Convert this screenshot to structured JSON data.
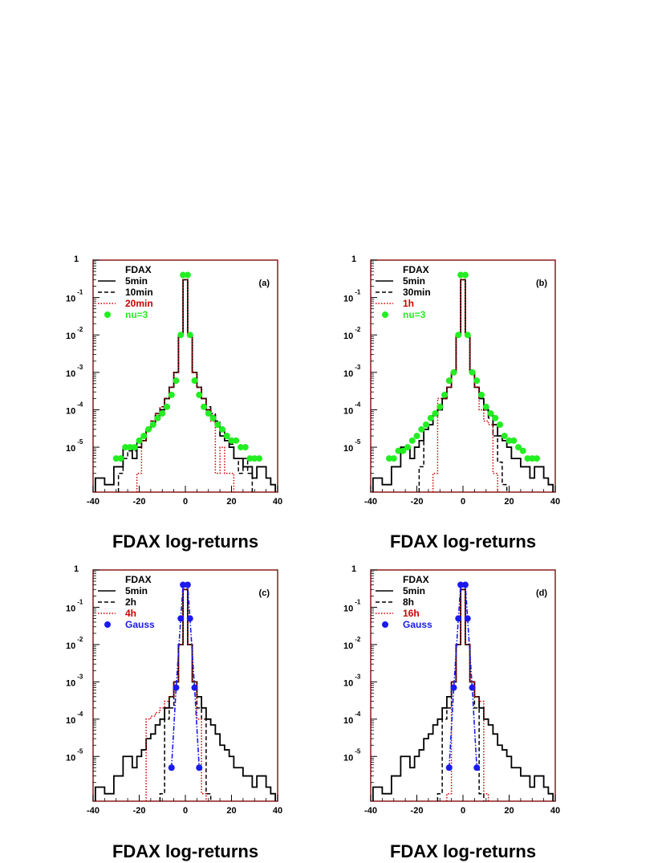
{
  "colors": {
    "black": "#000000",
    "red": "#cc0000",
    "green": "#22ee22",
    "blue": "#1a1aee",
    "frame": "#8b1a1a"
  },
  "chart_data": [
    {
      "panel": "(a)",
      "type": "histogram",
      "xlabel": "FDAX log-returns",
      "xlim": [
        -40,
        40
      ],
      "xticks": [
        "-40",
        "-20",
        "0",
        "20",
        "40"
      ],
      "yscale": "log",
      "yticks": [
        {
          "base": "1",
          "exp": ""
        },
        {
          "base": "10",
          "exp": "-1"
        },
        {
          "base": "10",
          "exp": "-2"
        },
        {
          "base": "10",
          "exp": "-3"
        },
        {
          "base": "10",
          "exp": "-4"
        },
        {
          "base": "10",
          "exp": "-5"
        }
      ],
      "legend_title": "FDAX",
      "series": [
        {
          "name": "5min",
          "style": "solid",
          "color": "#000000",
          "x": [
            -38,
            -36,
            -34,
            -32,
            -30,
            -28,
            -26,
            -24,
            -22,
            -20,
            -18,
            -16,
            -14,
            -12,
            -10,
            -8,
            -6,
            -4,
            -2,
            0,
            2,
            4,
            6,
            8,
            10,
            12,
            14,
            16,
            18,
            20,
            22,
            24,
            26,
            28,
            30,
            32,
            34,
            36,
            38
          ],
          "y": [
            1.5e-06,
            1.5e-06,
            1e-06,
            1e-06,
            3e-06,
            3e-06,
            1e-05,
            1e-05,
            5e-06,
            1e-05,
            1.5e-05,
            3e-05,
            4e-05,
            7e-05,
            0.0001,
            0.0002,
            0.0004,
            0.001,
            0.01,
            0.3,
            0.01,
            0.001,
            0.0004,
            0.0002,
            0.0001,
            7e-05,
            4e-05,
            2e-05,
            1.5e-05,
            1e-05,
            5e-06,
            5e-06,
            3e-06,
            3e-06,
            1.5e-06,
            3e-06,
            3e-06,
            1.5e-06,
            1e-06
          ]
        },
        {
          "name": "10min",
          "style": "dashed",
          "color": "#000000",
          "x": [
            -28,
            -26,
            -24,
            -22,
            -20,
            -18,
            -16,
            -14,
            -12,
            -10,
            -8,
            -6,
            -4,
            -2,
            0,
            2,
            4,
            6,
            8,
            10,
            12,
            14,
            16,
            18,
            20,
            22,
            24,
            26,
            28
          ],
          "y": [
            2e-06,
            5e-06,
            8e-06,
            8e-06,
            1.5e-05,
            2e-05,
            3e-05,
            5e-05,
            8e-05,
            0.00012,
            0.0002,
            0.0004,
            0.001,
            0.01,
            0.3,
            0.01,
            0.001,
            0.0004,
            0.0002,
            0.00012,
            8e-05,
            5e-05,
            3e-05,
            2e-05,
            1.2e-05,
            5e-06,
            2e-06,
            5e-06,
            2e-06
          ]
        },
        {
          "name": "20min",
          "style": "dotted",
          "color": "#cc0000",
          "x": [
            -20,
            -18,
            -16,
            -14,
            -12,
            -10,
            -8,
            -6,
            -4,
            -2,
            0,
            2,
            4,
            6,
            8,
            10,
            12,
            14,
            16,
            18,
            20
          ],
          "y": [
            2e-06,
            1.5e-05,
            3e-05,
            5e-05,
            8e-05,
            0.00012,
            0.0002,
            0.0004,
            0.001,
            0.01,
            0.3,
            0.01,
            0.001,
            0.0004,
            0.0002,
            0.0001,
            5e-05,
            2e-06,
            1e-05,
            2e-06,
            2e-06
          ]
        },
        {
          "name": "nu=3",
          "style": "points",
          "color": "#22ee22",
          "x": [
            -30,
            -28,
            -26,
            -24,
            -22,
            -20,
            -18,
            -16,
            -14,
            -12,
            -10,
            -8,
            -6,
            -4,
            -2,
            -1,
            1,
            2,
            4,
            6,
            8,
            10,
            12,
            14,
            16,
            18,
            20,
            22,
            24,
            26,
            28,
            30,
            32
          ],
          "y": [
            5e-06,
            5e-06,
            1e-05,
            1e-05,
            1e-05,
            1.5e-05,
            2e-05,
            3e-05,
            4e-05,
            6e-05,
            8e-05,
            0.00012,
            0.00025,
            0.0006,
            0.01,
            0.4,
            0.4,
            0.01,
            0.0006,
            0.00025,
            0.00012,
            8e-05,
            6e-05,
            4e-05,
            3e-05,
            2e-05,
            1.5e-05,
            1.5e-05,
            1e-05,
            1e-05,
            5e-06,
            5e-06,
            5e-06
          ]
        }
      ]
    },
    {
      "panel": "(b)",
      "type": "histogram",
      "xlabel": "FDAX log-returns",
      "xlim": [
        -40,
        40
      ],
      "xticks": [
        "-40",
        "-20",
        "0",
        "20",
        "40"
      ],
      "yscale": "log",
      "yticks": [
        {
          "base": "1",
          "exp": ""
        },
        {
          "base": "10",
          "exp": "-1"
        },
        {
          "base": "10",
          "exp": "-2"
        },
        {
          "base": "10",
          "exp": "-3"
        },
        {
          "base": "10",
          "exp": "-4"
        },
        {
          "base": "10",
          "exp": "-5"
        }
      ],
      "legend_title": "FDAX",
      "series": [
        {
          "name": "5min",
          "style": "solid",
          "color": "#000000",
          "x": [
            -38,
            -36,
            -34,
            -32,
            -30,
            -28,
            -26,
            -24,
            -22,
            -20,
            -18,
            -16,
            -14,
            -12,
            -10,
            -8,
            -6,
            -4,
            -2,
            0,
            2,
            4,
            6,
            8,
            10,
            12,
            14,
            16,
            18,
            20,
            22,
            24,
            26,
            28,
            30,
            32,
            34,
            36,
            38
          ],
          "y": [
            1.5e-06,
            1.5e-06,
            1e-06,
            1e-06,
            3e-06,
            3e-06,
            1e-05,
            1e-05,
            5e-06,
            1e-05,
            1.5e-05,
            3e-05,
            4e-05,
            7e-05,
            0.0001,
            0.0002,
            0.0004,
            0.001,
            0.01,
            0.3,
            0.01,
            0.001,
            0.0004,
            0.0002,
            0.0001,
            7e-05,
            4e-05,
            2e-05,
            1.5e-05,
            1e-05,
            5e-06,
            5e-06,
            3e-06,
            3e-06,
            1.5e-06,
            3e-06,
            3e-06,
            1.5e-06,
            1e-06
          ]
        },
        {
          "name": "30min",
          "style": "dashed",
          "color": "#000000",
          "x": [
            -18,
            -16,
            -14,
            -12,
            -10,
            -8,
            -6,
            -4,
            -2,
            0,
            2,
            4,
            6,
            8,
            10,
            12,
            14,
            16,
            18
          ],
          "y": [
            3e-06,
            3e-05,
            4e-05,
            8e-05,
            0.00012,
            0.0002,
            0.0004,
            0.001,
            0.01,
            0.3,
            0.01,
            0.001,
            0.0004,
            0.0002,
            0.00012,
            6e-05,
            2e-05,
            4e-06,
            1e-06
          ]
        },
        {
          "name": "1h",
          "style": "dotted",
          "color": "#cc0000",
          "x": [
            -12,
            -10,
            -8,
            -6,
            -4,
            -2,
            0,
            2,
            4,
            6,
            8,
            10,
            12,
            14
          ],
          "y": [
            2e-06,
            0.0002,
            0.0002,
            0.0004,
            0.001,
            0.01,
            0.3,
            0.01,
            0.001,
            0.0004,
            0.0001,
            5e-05,
            4e-05,
            2e-06
          ]
        },
        {
          "name": "nu=3",
          "style": "points",
          "color": "#22ee22",
          "x": [
            -32,
            -30,
            -28,
            -26,
            -24,
            -22,
            -20,
            -18,
            -16,
            -14,
            -12,
            -10,
            -8,
            -6,
            -4,
            -2,
            -1,
            1,
            2,
            4,
            6,
            8,
            10,
            12,
            14,
            16,
            18,
            20,
            22,
            24,
            26,
            28,
            30,
            32
          ],
          "y": [
            5e-06,
            5e-06,
            8e-06,
            8e-06,
            1e-05,
            1.5e-05,
            2e-05,
            3e-05,
            4e-05,
            6e-05,
            8e-05,
            0.00012,
            0.00025,
            0.0006,
            0.001,
            0.01,
            0.4,
            0.4,
            0.01,
            0.001,
            0.0006,
            0.00025,
            0.00012,
            8e-05,
            6e-05,
            4e-05,
            2e-05,
            1.5e-05,
            1.5e-05,
            1e-05,
            8e-06,
            5e-06,
            5e-06,
            5e-06
          ]
        }
      ]
    },
    {
      "panel": "(c)",
      "type": "histogram",
      "xlabel": "FDAX log-returns",
      "xlim": [
        -40,
        40
      ],
      "xticks": [
        "-40",
        "-20",
        "0",
        "20",
        "40"
      ],
      "yscale": "log",
      "yticks": [
        {
          "base": "1",
          "exp": ""
        },
        {
          "base": "10",
          "exp": "-1"
        },
        {
          "base": "10",
          "exp": "-2"
        },
        {
          "base": "10",
          "exp": "-3"
        },
        {
          "base": "10",
          "exp": "-4"
        },
        {
          "base": "10",
          "exp": "-5"
        }
      ],
      "legend_title": "FDAX",
      "series": [
        {
          "name": "5min",
          "style": "solid",
          "color": "#000000",
          "x": [
            -38,
            -36,
            -34,
            -32,
            -30,
            -28,
            -26,
            -24,
            -22,
            -20,
            -18,
            -16,
            -14,
            -12,
            -10,
            -8,
            -6,
            -4,
            -2,
            0,
            2,
            4,
            6,
            8,
            10,
            12,
            14,
            16,
            18,
            20,
            22,
            24,
            26,
            28,
            30,
            32,
            34,
            36,
            38
          ],
          "y": [
            1.5e-06,
            1.5e-06,
            1e-06,
            1e-06,
            3e-06,
            3e-06,
            1e-05,
            1e-05,
            5e-06,
            1e-05,
            1.5e-05,
            3e-05,
            4e-05,
            7e-05,
            0.0001,
            0.0002,
            0.0004,
            0.001,
            0.01,
            0.3,
            0.01,
            0.001,
            0.0004,
            0.0002,
            0.0001,
            7e-05,
            4e-05,
            2e-05,
            1.5e-05,
            1e-05,
            5e-06,
            5e-06,
            3e-06,
            3e-06,
            1.5e-06,
            3e-06,
            3e-06,
            1.5e-06,
            1e-06
          ]
        },
        {
          "name": "2h",
          "style": "dashed",
          "color": "#000000",
          "x": [
            -10,
            -8,
            -6,
            -4,
            -2,
            0,
            2,
            4,
            6,
            8,
            10
          ],
          "y": [
            1e-06,
            0.0001,
            0.0002,
            0.001,
            0.01,
            0.3,
            0.01,
            0.001,
            0.0002,
            0.0001,
            1e-06
          ]
        },
        {
          "name": "4h",
          "style": "dotted",
          "color": "#cc0000",
          "x": [
            -16,
            -14,
            -12,
            -10,
            -8,
            -6,
            -4,
            -2,
            0,
            2,
            4,
            6,
            8
          ],
          "y": [
            0.0001,
            0.00012,
            0.00015,
            0.0002,
            0.0003,
            0.0004,
            0.001,
            0.01,
            0.3,
            0.01,
            0.001,
            0.0001,
            1e-06
          ]
        },
        {
          "name": "Gauss",
          "style": "points-curve",
          "color": "#1a1aee",
          "x": [
            -6,
            -4,
            -2,
            -1,
            1,
            2,
            4,
            6
          ],
          "y": [
            5e-06,
            0.0007,
            0.05,
            0.4,
            0.4,
            0.05,
            0.0007,
            5e-06
          ]
        }
      ]
    },
    {
      "panel": "(d)",
      "type": "histogram",
      "xlabel": "FDAX log-returns",
      "xlim": [
        -40,
        40
      ],
      "xticks": [
        "-40",
        "-20",
        "0",
        "20",
        "40"
      ],
      "yscale": "log",
      "yticks": [
        {
          "base": "1",
          "exp": ""
        },
        {
          "base": "10",
          "exp": "-1"
        },
        {
          "base": "10",
          "exp": "-2"
        },
        {
          "base": "10",
          "exp": "-3"
        },
        {
          "base": "10",
          "exp": "-4"
        },
        {
          "base": "10",
          "exp": "-5"
        }
      ],
      "legend_title": "FDAX",
      "series": [
        {
          "name": "5min",
          "style": "solid",
          "color": "#000000",
          "x": [
            -38,
            -36,
            -34,
            -32,
            -30,
            -28,
            -26,
            -24,
            -22,
            -20,
            -18,
            -16,
            -14,
            -12,
            -10,
            -8,
            -6,
            -4,
            -2,
            0,
            2,
            4,
            6,
            8,
            10,
            12,
            14,
            16,
            18,
            20,
            22,
            24,
            26,
            28,
            30,
            32,
            34,
            36,
            38
          ],
          "y": [
            1.5e-06,
            1.5e-06,
            1e-06,
            1e-06,
            3e-06,
            3e-06,
            1e-05,
            1e-05,
            5e-06,
            1e-05,
            1.5e-05,
            3e-05,
            4e-05,
            7e-05,
            0.0001,
            0.0002,
            0.0004,
            0.001,
            0.01,
            0.3,
            0.01,
            0.001,
            0.0004,
            0.0002,
            0.0001,
            7e-05,
            4e-05,
            2e-05,
            1.5e-05,
            1e-05,
            5e-06,
            5e-06,
            3e-06,
            3e-06,
            1.5e-06,
            3e-06,
            3e-06,
            1.5e-06,
            1e-06
          ]
        },
        {
          "name": "8h",
          "style": "dashed",
          "color": "#000000",
          "x": [
            -10,
            -8,
            -6,
            -4,
            -2,
            0,
            2,
            4,
            6,
            8
          ],
          "y": [
            1e-06,
            0.0001,
            0.0002,
            0.001,
            0.01,
            0.3,
            0.01,
            0.001,
            0.0002,
            1e-06
          ]
        },
        {
          "name": "16h",
          "style": "dotted",
          "color": "#cc0000",
          "x": [
            -6,
            -4,
            -2,
            0,
            2,
            4,
            6,
            8,
            10
          ],
          "y": [
            1e-06,
            0.001,
            0.01,
            0.3,
            0.01,
            0.001,
            0.0004,
            0.0003,
            1e-06
          ]
        },
        {
          "name": "Gauss",
          "style": "points-curve",
          "color": "#1a1aee",
          "x": [
            -6,
            -4,
            -2,
            -1,
            1,
            2,
            4,
            6
          ],
          "y": [
            5e-06,
            0.0007,
            0.05,
            0.4,
            0.4,
            0.05,
            0.0007,
            5e-06
          ]
        }
      ]
    }
  ]
}
